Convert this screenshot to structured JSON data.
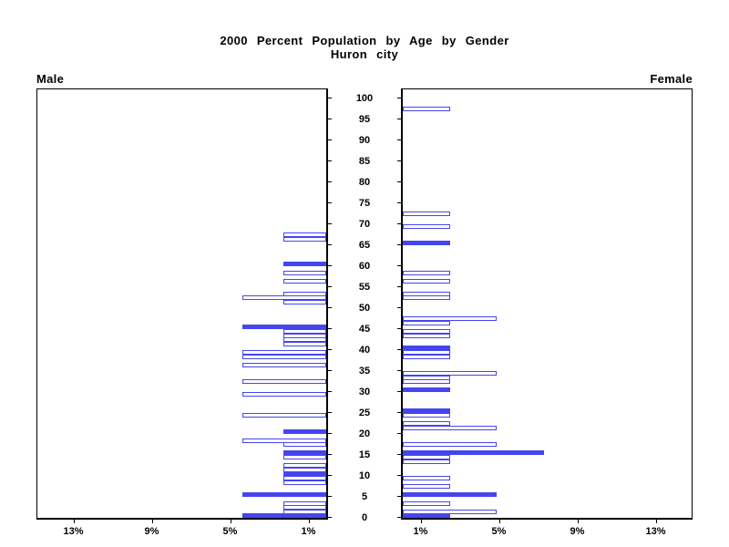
{
  "title": {
    "line1": "2000 Percent Population by Age by Gender",
    "line2": "Huron city"
  },
  "panel_labels": {
    "left": "Male",
    "right": "Female"
  },
  "colors": {
    "bar_blue": "#4545f0",
    "axis_black": "#000000",
    "background": "#ffffff"
  },
  "chart_data": {
    "type": "bar",
    "subtype": "population-pyramid",
    "title": "2000 Percent Population by Age by Gender",
    "subtitle": "Huron city",
    "orientation": "horizontal",
    "age_axis": {
      "min": 0,
      "max": 100,
      "step": 5,
      "tick_labels": [
        "0",
        "5",
        "10",
        "15",
        "20",
        "25",
        "30",
        "35",
        "40",
        "45",
        "50",
        "55",
        "60",
        "65",
        "70",
        "75",
        "80",
        "85",
        "90",
        "95",
        "100"
      ]
    },
    "pct_axis": {
      "max": 14.9,
      "tick_values": [
        1,
        5,
        9,
        13
      ],
      "tick_labels": [
        "1%",
        "5%",
        "9%",
        "13%"
      ]
    },
    "legend": "solid bars mark ages divisible by 5; hollow bars other single years of age; value is percent of gender population",
    "series": [
      {
        "name": "Male",
        "side": "left",
        "bars": [
          {
            "age": 67,
            "pct": 2.2,
            "filled": false
          },
          {
            "age": 66,
            "pct": 2.2,
            "filled": false
          },
          {
            "age": 60,
            "pct": 2.2,
            "filled": true
          },
          {
            "age": 58,
            "pct": 2.2,
            "filled": false
          },
          {
            "age": 56,
            "pct": 2.2,
            "filled": false
          },
          {
            "age": 53,
            "pct": 2.2,
            "filled": false
          },
          {
            "age": 52,
            "pct": 4.3,
            "filled": false
          },
          {
            "age": 51,
            "pct": 2.2,
            "filled": false
          },
          {
            "age": 45,
            "pct": 4.3,
            "filled": true
          },
          {
            "age": 44,
            "pct": 2.2,
            "filled": false
          },
          {
            "age": 43,
            "pct": 2.2,
            "filled": false
          },
          {
            "age": 42,
            "pct": 2.2,
            "filled": false
          },
          {
            "age": 41,
            "pct": 2.2,
            "filled": false
          },
          {
            "age": 39,
            "pct": 4.3,
            "filled": false
          },
          {
            "age": 38,
            "pct": 4.3,
            "filled": false
          },
          {
            "age": 36,
            "pct": 4.3,
            "filled": false
          },
          {
            "age": 32,
            "pct": 4.3,
            "filled": false
          },
          {
            "age": 29,
            "pct": 4.3,
            "filled": false
          },
          {
            "age": 24,
            "pct": 4.3,
            "filled": false
          },
          {
            "age": 20,
            "pct": 2.2,
            "filled": true
          },
          {
            "age": 18,
            "pct": 4.3,
            "filled": false
          },
          {
            "age": 17,
            "pct": 2.2,
            "filled": false
          },
          {
            "age": 15,
            "pct": 2.2,
            "filled": true
          },
          {
            "age": 14,
            "pct": 2.2,
            "filled": false
          },
          {
            "age": 12,
            "pct": 2.2,
            "filled": false
          },
          {
            "age": 11,
            "pct": 2.2,
            "filled": false
          },
          {
            "age": 10,
            "pct": 2.2,
            "filled": true
          },
          {
            "age": 9,
            "pct": 2.2,
            "filled": false
          },
          {
            "age": 8,
            "pct": 2.2,
            "filled": false
          },
          {
            "age": 5,
            "pct": 4.3,
            "filled": true
          },
          {
            "age": 3,
            "pct": 2.2,
            "filled": false
          },
          {
            "age": 2,
            "pct": 2.2,
            "filled": false
          },
          {
            "age": 1,
            "pct": 2.2,
            "filled": false
          },
          {
            "age": 0,
            "pct": 4.3,
            "filled": true
          }
        ]
      },
      {
        "name": "Female",
        "side": "right",
        "bars": [
          {
            "age": 97,
            "pct": 2.4,
            "filled": false
          },
          {
            "age": 72,
            "pct": 2.4,
            "filled": false
          },
          {
            "age": 69,
            "pct": 2.4,
            "filled": false
          },
          {
            "age": 65,
            "pct": 2.4,
            "filled": true
          },
          {
            "age": 58,
            "pct": 2.4,
            "filled": false
          },
          {
            "age": 56,
            "pct": 2.4,
            "filled": false
          },
          {
            "age": 53,
            "pct": 2.4,
            "filled": false
          },
          {
            "age": 52,
            "pct": 2.4,
            "filled": false
          },
          {
            "age": 47,
            "pct": 4.8,
            "filled": false
          },
          {
            "age": 46,
            "pct": 2.4,
            "filled": false
          },
          {
            "age": 44,
            "pct": 2.4,
            "filled": false
          },
          {
            "age": 43,
            "pct": 2.4,
            "filled": false
          },
          {
            "age": 40,
            "pct": 2.4,
            "filled": true
          },
          {
            "age": 39,
            "pct": 2.4,
            "filled": false
          },
          {
            "age": 38,
            "pct": 2.4,
            "filled": false
          },
          {
            "age": 34,
            "pct": 4.8,
            "filled": false
          },
          {
            "age": 33,
            "pct": 2.4,
            "filled": false
          },
          {
            "age": 32,
            "pct": 2.4,
            "filled": false
          },
          {
            "age": 30,
            "pct": 2.4,
            "filled": true
          },
          {
            "age": 25,
            "pct": 2.4,
            "filled": true
          },
          {
            "age": 24,
            "pct": 2.4,
            "filled": false
          },
          {
            "age": 22,
            "pct": 2.4,
            "filled": false
          },
          {
            "age": 21,
            "pct": 4.8,
            "filled": false
          },
          {
            "age": 17,
            "pct": 4.8,
            "filled": false
          },
          {
            "age": 15,
            "pct": 7.2,
            "filled": true
          },
          {
            "age": 14,
            "pct": 2.4,
            "filled": false
          },
          {
            "age": 13,
            "pct": 2.4,
            "filled": false
          },
          {
            "age": 9,
            "pct": 2.4,
            "filled": false
          },
          {
            "age": 7,
            "pct": 2.4,
            "filled": false
          },
          {
            "age": 5,
            "pct": 4.8,
            "filled": true
          },
          {
            "age": 3,
            "pct": 2.4,
            "filled": false
          },
          {
            "age": 1,
            "pct": 4.8,
            "filled": false
          },
          {
            "age": 0,
            "pct": 2.4,
            "filled": true
          }
        ]
      }
    ]
  }
}
